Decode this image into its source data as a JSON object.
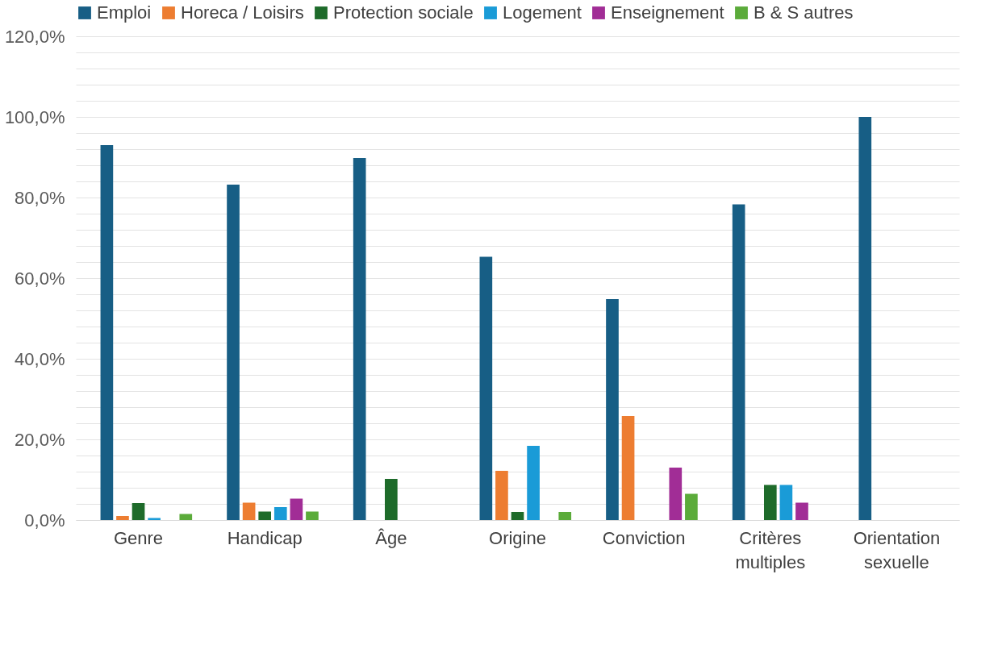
{
  "chart_data": {
    "type": "bar",
    "categories": [
      "Genre",
      "Handicap",
      "Âge",
      "Origine",
      "Conviction",
      "Critères multiples",
      "Orientation sexuelle"
    ],
    "series": [
      {
        "name": "Emploi",
        "color": "#175e85",
        "values": [
          93.0,
          83.2,
          89.8,
          65.3,
          54.8,
          78.3,
          100.0
        ]
      },
      {
        "name": "Horeca / Loisirs",
        "color": "#ed7d31",
        "values": [
          1.0,
          4.3,
          null,
          12.2,
          25.8,
          null,
          null
        ]
      },
      {
        "name": "Protection sociale",
        "color": "#1e6b2a",
        "values": [
          4.2,
          2.1,
          10.2,
          2.0,
          null,
          8.7,
          null
        ]
      },
      {
        "name": "Logement",
        "color": "#1a9bd7",
        "values": [
          0.5,
          3.2,
          null,
          18.4,
          null,
          8.7,
          null
        ]
      },
      {
        "name": "Enseignement",
        "color": "#a12d96",
        "values": [
          null,
          5.3,
          null,
          null,
          13.0,
          4.3,
          null
        ]
      },
      {
        "name": "B & S autres",
        "color": "#5bab3a",
        "values": [
          1.5,
          2.1,
          null,
          2.0,
          6.5,
          null,
          null
        ]
      }
    ],
    "ylim": [
      0,
      120
    ],
    "yticks": [
      {
        "value": 0,
        "label": "0,0%"
      },
      {
        "value": 4,
        "label": null
      },
      {
        "value": 8,
        "label": null
      },
      {
        "value": 12,
        "label": null
      },
      {
        "value": 16,
        "label": null
      },
      {
        "value": 20,
        "label": "20,0%"
      },
      {
        "value": 24,
        "label": null
      },
      {
        "value": 28,
        "label": null
      },
      {
        "value": 32,
        "label": null
      },
      {
        "value": 36,
        "label": null
      },
      {
        "value": 40,
        "label": "40,0%"
      },
      {
        "value": 44,
        "label": null
      },
      {
        "value": 48,
        "label": null
      },
      {
        "value": 52,
        "label": null
      },
      {
        "value": 56,
        "label": null
      },
      {
        "value": 60,
        "label": "60,0%"
      },
      {
        "value": 64,
        "label": null
      },
      {
        "value": 68,
        "label": null
      },
      {
        "value": 72,
        "label": null
      },
      {
        "value": 76,
        "label": null
      },
      {
        "value": 80,
        "label": "80,0%"
      },
      {
        "value": 84,
        "label": null
      },
      {
        "value": 88,
        "label": null
      },
      {
        "value": 92,
        "label": null
      },
      {
        "value": 96,
        "label": null
      },
      {
        "value": 100,
        "label": "100,0%"
      },
      {
        "value": 104,
        "label": null
      },
      {
        "value": 108,
        "label": null
      },
      {
        "value": 112,
        "label": null
      },
      {
        "value": 116,
        "label": null
      },
      {
        "value": 120,
        "label": "120,0%"
      }
    ],
    "grid": "y",
    "legend": "top"
  }
}
